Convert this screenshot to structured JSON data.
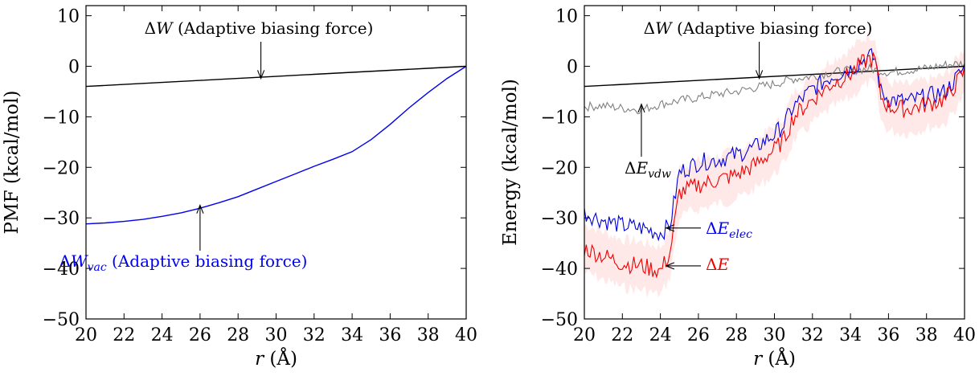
{
  "chart_data": [
    {
      "type": "line",
      "xlabel": "r (Å)",
      "ylabel": "PMF (kcal/mol)",
      "xlim": [
        20,
        40
      ],
      "ylim": [
        -50,
        12
      ],
      "xticks": [
        20,
        22,
        24,
        26,
        28,
        30,
        32,
        34,
        36,
        38,
        40
      ],
      "yticks": [
        10,
        0,
        -10,
        -20,
        -30,
        -40,
        -50
      ],
      "grid": false,
      "series": [
        {
          "name": "ΔW (Adaptive biasing force)",
          "color": "#000000",
          "x": [
            20,
            22,
            24,
            26,
            28,
            30,
            32,
            34,
            36,
            38,
            40
          ],
          "y": [
            -4.0,
            -3.6,
            -3.2,
            -2.8,
            -2.4,
            -2.0,
            -1.6,
            -1.2,
            -0.8,
            -0.4,
            0.0
          ]
        },
        {
          "name": "ΔWvac (Adaptive biasing force)",
          "color": "#0000ee",
          "x": [
            20,
            21,
            22,
            23,
            24,
            25,
            26,
            27,
            28,
            29,
            30,
            31,
            32,
            33,
            34,
            35,
            36,
            37,
            38,
            39,
            40
          ],
          "y": [
            -31.2,
            -31.0,
            -30.7,
            -30.3,
            -29.7,
            -29.0,
            -28.1,
            -27.0,
            -25.8,
            -24.3,
            -22.8,
            -21.3,
            -19.8,
            -18.4,
            -16.9,
            -14.5,
            -11.5,
            -8.2,
            -5.2,
            -2.4,
            0.0
          ]
        }
      ],
      "annotations": [
        {
          "prefix": "ΔW",
          "sub": "",
          "suffix": " (Adaptive biasing force)",
          "color": "#000000",
          "arrow_to": [
            29.2,
            -2.4
          ]
        },
        {
          "prefix": "ΔW",
          "sub": "vac",
          "suffix": " (Adaptive biasing force)",
          "color": "#0000ee",
          "arrow_to": [
            26,
            -27.5
          ]
        }
      ]
    },
    {
      "type": "line",
      "xlabel": "r (Å)",
      "ylabel": "Energy (kcal/mol)",
      "xlim": [
        20,
        40
      ],
      "ylim": [
        -50,
        12
      ],
      "xticks": [
        20,
        22,
        24,
        26,
        28,
        30,
        32,
        34,
        36,
        38,
        40
      ],
      "yticks": [
        10,
        0,
        -10,
        -20,
        -30,
        -40,
        -50
      ],
      "grid": false,
      "series": [
        {
          "name": "ΔW",
          "color": "#000000",
          "x": [
            20,
            40
          ],
          "y": [
            -4.0,
            0.0
          ]
        },
        {
          "name": "ΔEvdw",
          "color": "#808080",
          "x": [
            20,
            21,
            22,
            23,
            24,
            25,
            26,
            27,
            28,
            29,
            30,
            31,
            32,
            33,
            34,
            35,
            36,
            37,
            38,
            39,
            40
          ],
          "y": [
            -8.0,
            -7.8,
            -8.3,
            -8.6,
            -7.5,
            -6.8,
            -6.2,
            -5.5,
            -5.0,
            -4.2,
            -3.5,
            -2.5,
            -2.0,
            -1.2,
            -0.8,
            -0.5,
            -1.2,
            -0.8,
            -0.4,
            0.3,
            0.6
          ]
        },
        {
          "name": "ΔEelec",
          "color": "#0000dd",
          "x": [
            20,
            21,
            22,
            23,
            24,
            24.5,
            25,
            26,
            27,
            28,
            29,
            30,
            30.5,
            31,
            32,
            33,
            34,
            34.5,
            35,
            35.3,
            35.6,
            36,
            37,
            38,
            39,
            40
          ],
          "y": [
            -29,
            -30.5,
            -31.5,
            -32,
            -33,
            -31.5,
            -21,
            -19,
            -18.5,
            -17.5,
            -16,
            -13.5,
            -11.5,
            -8,
            -4.5,
            -2,
            -0.5,
            0.8,
            2,
            1.5,
            -5,
            -6.5,
            -7,
            -6,
            -5,
            -0.3
          ]
        },
        {
          "name": "ΔE",
          "color": "#ee0000",
          "x": [
            20,
            21,
            22,
            23,
            24,
            24.5,
            25,
            26,
            27,
            28,
            29,
            30,
            30.5,
            31,
            32,
            33,
            34,
            34.5,
            35,
            35.3,
            35.6,
            36,
            37,
            38,
            39,
            40
          ],
          "y": [
            -36,
            -37.5,
            -39,
            -39.5,
            -40.5,
            -37,
            -25,
            -23.5,
            -22.5,
            -21.5,
            -19.5,
            -16.5,
            -14.5,
            -10,
            -6.5,
            -3.5,
            -1.5,
            0.3,
            1.5,
            1,
            -6,
            -8,
            -8.5,
            -7.5,
            -6.5,
            -1
          ]
        }
      ],
      "annotations": [
        {
          "prefix": "ΔW",
          "sub": "",
          "suffix": " (Adaptive biasing force)",
          "color": "#000000",
          "arrow_to": [
            29.2,
            -2.4
          ]
        },
        {
          "prefix": "ΔE",
          "sub": "vdw",
          "suffix": "",
          "color": "#000000",
          "arrow_to": [
            23,
            -7.5
          ]
        },
        {
          "prefix": "ΔE",
          "sub": "elec",
          "suffix": "",
          "color": "#0000ee",
          "arrow_to": [
            24.3,
            -32
          ]
        },
        {
          "prefix": "ΔE",
          "sub": "",
          "suffix": "",
          "color": "#ee0000",
          "arrow_to": [
            24.3,
            -39.5
          ]
        }
      ]
    }
  ]
}
